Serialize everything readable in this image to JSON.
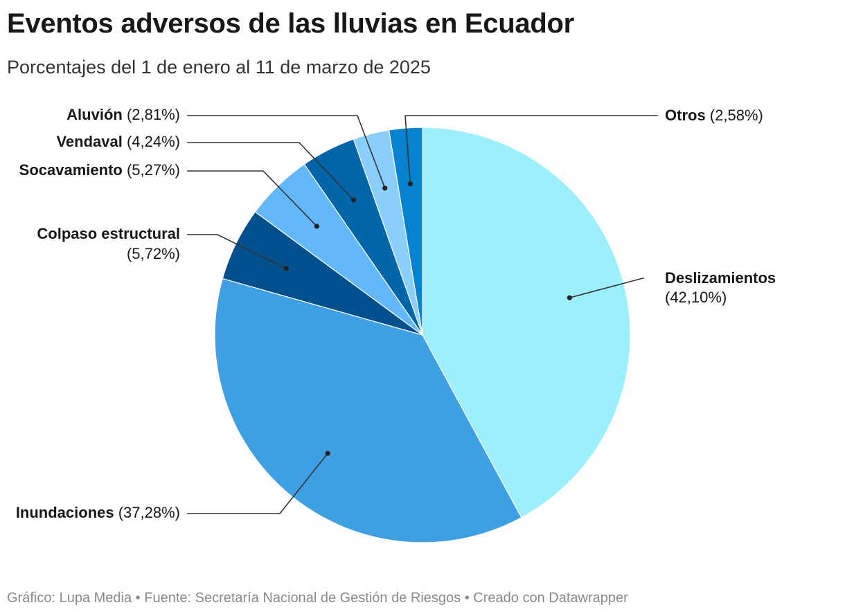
{
  "title": "Eventos adversos de las lluvias en Ecuador",
  "subtitle": "Porcentajes del 1 de enero al 11 de marzo de 2025",
  "footer": {
    "credit": "Gráfico: Lupa Media",
    "source": "Fuente: Secretaría Nacional de Gestión de Riesgos",
    "tool": "Creado con Datawrapper",
    "separator": " • "
  },
  "chart_data": {
    "type": "pie",
    "title": "Eventos adversos de las lluvias en Ecuador",
    "subtitle": "Porcentajes del 1 de enero al 11 de marzo de 2025",
    "unit": "%",
    "slices": [
      {
        "name": "Deslizamientos",
        "value": 42.1,
        "label_value": "(42,10%)",
        "color": "#9CEFFD"
      },
      {
        "name": "Inundaciones",
        "value": 37.28,
        "label_value": "(37,28%)",
        "color": "#3F9FE3"
      },
      {
        "name": "Colpaso estructural",
        "value": 5.72,
        "label_value": "(5,72%)",
        "color": "#02508E"
      },
      {
        "name": "Socavamiento",
        "value": 5.27,
        "label_value": "(5,27%)",
        "color": "#63B8FC"
      },
      {
        "name": "Vendaval",
        "value": 4.24,
        "label_value": "(4,24%)",
        "color": "#0165A9"
      },
      {
        "name": "Aluvión",
        "value": 2.81,
        "label_value": "(2,81%)",
        "color": "#8ACEFC"
      },
      {
        "name": "Otros",
        "value": 2.58,
        "label_value": "(2,58%)",
        "color": "#0683D0"
      }
    ]
  }
}
